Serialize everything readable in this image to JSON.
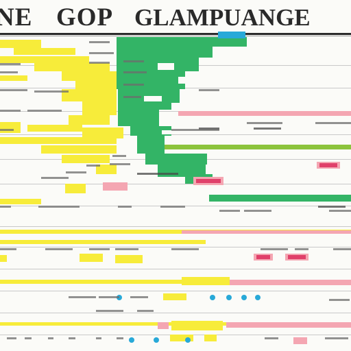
{
  "title": {
    "word1": "NE",
    "word2": "GOP",
    "word3": "GLAMPUANGE"
  },
  "colors": {
    "yellow": "#f7ec3a",
    "green": "#33b466",
    "pink": "#f4a6b2",
    "magenta": "#e0406a",
    "lime": "#8cc43c",
    "cyan": "#28a9d8",
    "dark": "#2a2a2a"
  }
}
